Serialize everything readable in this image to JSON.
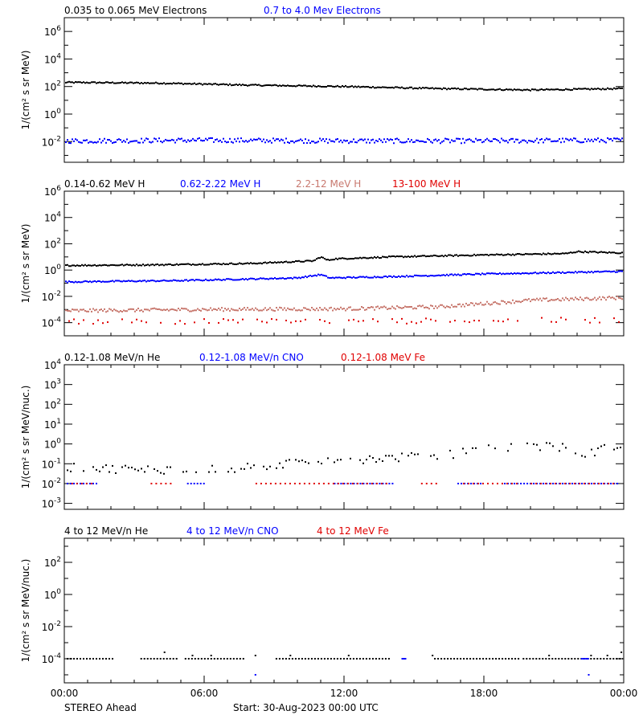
{
  "chart_data": [
    {
      "type": "scatter",
      "legend": [
        {
          "text": "0.035 to 0.065 MeV Electrons",
          "color": "#000000"
        },
        {
          "text": "0.7 to 4.0 Mev Electrons",
          "color": "#0000ff"
        }
      ],
      "ylabel": "1/(cm² s sr MeV)",
      "yscale": "log",
      "ylim_exp": [
        -3.5,
        7
      ],
      "yticks": [
        {
          "exp": 6,
          "label": "10",
          "sup": "6"
        },
        {
          "exp": 4,
          "label": "10",
          "sup": "4"
        },
        {
          "exp": 2,
          "label": "10",
          "sup": "2"
        },
        {
          "exp": 0,
          "label": "10",
          "sup": "0"
        },
        {
          "exp": -2,
          "label": "10",
          "sup": "-2"
        }
      ],
      "series": [
        {
          "name": "0.035 to 0.065 MeV Electrons",
          "color": "#000000",
          "mode": "dense",
          "x": [
            0,
            4,
            8,
            12,
            16,
            20,
            24
          ],
          "log10y": [
            2.3,
            2.25,
            2.1,
            2.0,
            1.85,
            1.75,
            1.85
          ],
          "jitter": 0.05
        },
        {
          "name": "0.7 to 4.0 Mev Electrons",
          "color": "#0000ff",
          "mode": "dense",
          "x": [
            0,
            6,
            12,
            18,
            24
          ],
          "log10y": [
            -1.95,
            -1.9,
            -1.95,
            -1.95,
            -1.9
          ],
          "jitter": 0.17
        }
      ]
    },
    {
      "type": "scatter",
      "legend": [
        {
          "text": "0.14-0.62 MeV H",
          "color": "#000000"
        },
        {
          "text": "0.62-2.22 MeV H",
          "color": "#0000ff"
        },
        {
          "text": "2.2-12 MeV H",
          "color": "#c8786e"
        },
        {
          "text": "13-100 MeV H",
          "color": "#e00000"
        }
      ],
      "ylabel": "1/(cm² s sr MeV)",
      "yscale": "log",
      "ylim_exp": [
        -5,
        6
      ],
      "yticks": [
        {
          "exp": 6,
          "label": "10",
          "sup": "6"
        },
        {
          "exp": 4,
          "label": "10",
          "sup": "4"
        },
        {
          "exp": 2,
          "label": "10",
          "sup": "2"
        },
        {
          "exp": 0,
          "label": "10",
          "sup": "0"
        },
        {
          "exp": -2,
          "label": "10",
          "sup": "-2"
        },
        {
          "exp": -4,
          "label": "10",
          "sup": "-4"
        }
      ],
      "series": [
        {
          "name": "0.14-0.62 MeV H",
          "color": "#000000",
          "mode": "dense",
          "x": [
            0,
            4,
            8,
            10.7,
            11.0,
            11.3,
            11.6,
            14,
            18,
            21.5,
            22,
            24
          ],
          "log10y": [
            0.35,
            0.4,
            0.5,
            0.7,
            1.0,
            0.75,
            0.85,
            1.0,
            1.15,
            1.25,
            1.4,
            1.3
          ],
          "jitter": 0.05
        },
        {
          "name": "0.62-2.22 MeV H",
          "color": "#0000ff",
          "mode": "dense",
          "x": [
            0,
            5,
            10,
            11,
            11.4,
            14,
            18,
            24
          ],
          "log10y": [
            -0.9,
            -0.8,
            -0.6,
            -0.35,
            -0.6,
            -0.5,
            -0.3,
            -0.1
          ],
          "jitter": 0.05
        },
        {
          "name": "2.2-12 MeV H",
          "color": "#c8786e",
          "mode": "dense",
          "x": [
            0,
            6,
            12,
            16,
            20,
            24
          ],
          "log10y": [
            -3.1,
            -3.0,
            -2.95,
            -2.8,
            -2.3,
            -2.1
          ],
          "jitter": 0.13
        },
        {
          "name": "13-100 MeV H",
          "color": "#e00000",
          "mode": "sparse",
          "every": 3,
          "x": [
            0,
            12,
            24
          ],
          "log10y": [
            -3.9,
            -3.9,
            -3.8
          ],
          "jitter": 0.2
        }
      ]
    },
    {
      "type": "scatter",
      "legend": [
        {
          "text": "0.12-1.08 MeV/n He",
          "color": "#000000"
        },
        {
          "text": "0.12-1.08 MeV/n CNO",
          "color": "#0000ff"
        },
        {
          "text": "0.12-1.08 MeV Fe",
          "color": "#e00000"
        }
      ],
      "ylabel": "1/(cm² s sr MeV/nuc.)",
      "yscale": "log",
      "ylim_exp": [
        -3.3,
        4
      ],
      "yticks": [
        {
          "exp": 4,
          "label": "10",
          "sup": "4"
        },
        {
          "exp": 3,
          "label": "10",
          "sup": "3"
        },
        {
          "exp": 2,
          "label": "10",
          "sup": "2"
        },
        {
          "exp": 1,
          "label": "10",
          "sup": "1"
        },
        {
          "exp": 0,
          "label": "10",
          "sup": "0"
        },
        {
          "exp": -1,
          "label": "10",
          "sup": "-1"
        },
        {
          "exp": -2,
          "label": "10",
          "sup": "-2"
        },
        {
          "exp": -3,
          "label": "10",
          "sup": "-3"
        }
      ],
      "series": [
        {
          "name": "0.12-1.08 MeV/n He",
          "color": "#000000",
          "mode": "sparse",
          "every": 2,
          "x": [
            0,
            4,
            8,
            10,
            12,
            14,
            16,
            18,
            20,
            21.5,
            22,
            24
          ],
          "log10y": [
            -1.2,
            -1.3,
            -1.2,
            -0.9,
            -0.8,
            -0.7,
            -0.6,
            -0.3,
            -0.1,
            -0.2,
            -0.6,
            0
          ],
          "jitter": 0.22
        },
        {
          "name": "0.12-1.08 MeV/n CNO",
          "color": "#0000ff",
          "mode": "spans",
          "level": -2,
          "spans": [
            [
              0,
              1.5
            ],
            [
              5.3,
              6.1
            ],
            [
              11.6,
              14.2
            ],
            [
              16.9,
              17.9
            ],
            [
              18.9,
              23.8
            ]
          ],
          "every": 2
        },
        {
          "name": "0.12-1.08 MeV Fe",
          "color": "#e00000",
          "mode": "spans",
          "level": -2,
          "spans": [
            [
              0.2,
              1.3
            ],
            [
              3.6,
              4.7
            ],
            [
              8.1,
              14.0
            ],
            [
              15.2,
              16.0
            ],
            [
              17.0,
              19.6
            ],
            [
              19.9,
              23.6
            ]
          ],
          "every": 3,
          "offset": 1
        }
      ]
    },
    {
      "type": "scatter",
      "legend": [
        {
          "text": "4 to 12 MeV/n He",
          "color": "#000000"
        },
        {
          "text": "4 to 12 MeV/n CNO",
          "color": "#0000ff"
        },
        {
          "text": "4 to 12 MeV Fe",
          "color": "#e00000"
        }
      ],
      "ylabel": "1/(cm² s sr MeV/nuc.)",
      "yscale": "log",
      "ylim_exp": [
        -5.5,
        3.5
      ],
      "yticks": [
        {
          "exp": 2,
          "label": "10",
          "sup": "2"
        },
        {
          "exp": 0,
          "label": "10",
          "sup": "0"
        },
        {
          "exp": -2,
          "label": "10",
          "sup": "-2"
        },
        {
          "exp": -4,
          "label": "10",
          "sup": "-4"
        }
      ],
      "series": [
        {
          "name": "4 to 12 MeV/n He",
          "color": "#000000",
          "mode": "spans",
          "level": -4,
          "spans": [
            [
              0,
              2.2
            ],
            [
              3.3,
              4.9
            ],
            [
              5.2,
              7.7
            ],
            [
              9.1,
              14.0
            ],
            [
              15.9,
              19.6
            ],
            [
              19.7,
              24
            ]
          ],
          "every": 2,
          "bumps": [
            [
              4.3,
              -3.6
            ],
            [
              5.5,
              -3.8
            ],
            [
              6.3,
              -3.8
            ],
            [
              8.2,
              -3.8
            ],
            [
              9.7,
              -3.8
            ],
            [
              12.2,
              -3.8
            ],
            [
              15.8,
              -3.8
            ],
            [
              20.8,
              -3.8
            ],
            [
              22.6,
              -3.8
            ],
            [
              23.3,
              -3.8
            ],
            [
              23.9,
              -3.6
            ]
          ]
        },
        {
          "name": "4 to 12 MeV/n CNO",
          "color": "#0000ff",
          "mode": "spans",
          "level": -4,
          "spans": [
            [
              14.5,
              14.7
            ],
            [
              22.2,
              22.5
            ]
          ],
          "every": 1,
          "bumps": [
            [
              8.2,
              -5.0
            ],
            [
              22.5,
              -5.0
            ]
          ]
        }
      ]
    }
  ],
  "xaxis": {
    "range_hours": [
      0,
      24
    ],
    "ticks": [
      {
        "hour": 0,
        "label": "00:00"
      },
      {
        "hour": 6,
        "label": "06:00"
      },
      {
        "hour": 12,
        "label": "12:00"
      },
      {
        "hour": 18,
        "label": "18:00"
      },
      {
        "hour": 24,
        "label": "00:00"
      }
    ]
  },
  "footer": {
    "spacecraft": "STEREO Ahead",
    "start": "Start: 30-Aug-2023 00:00 UTC"
  }
}
